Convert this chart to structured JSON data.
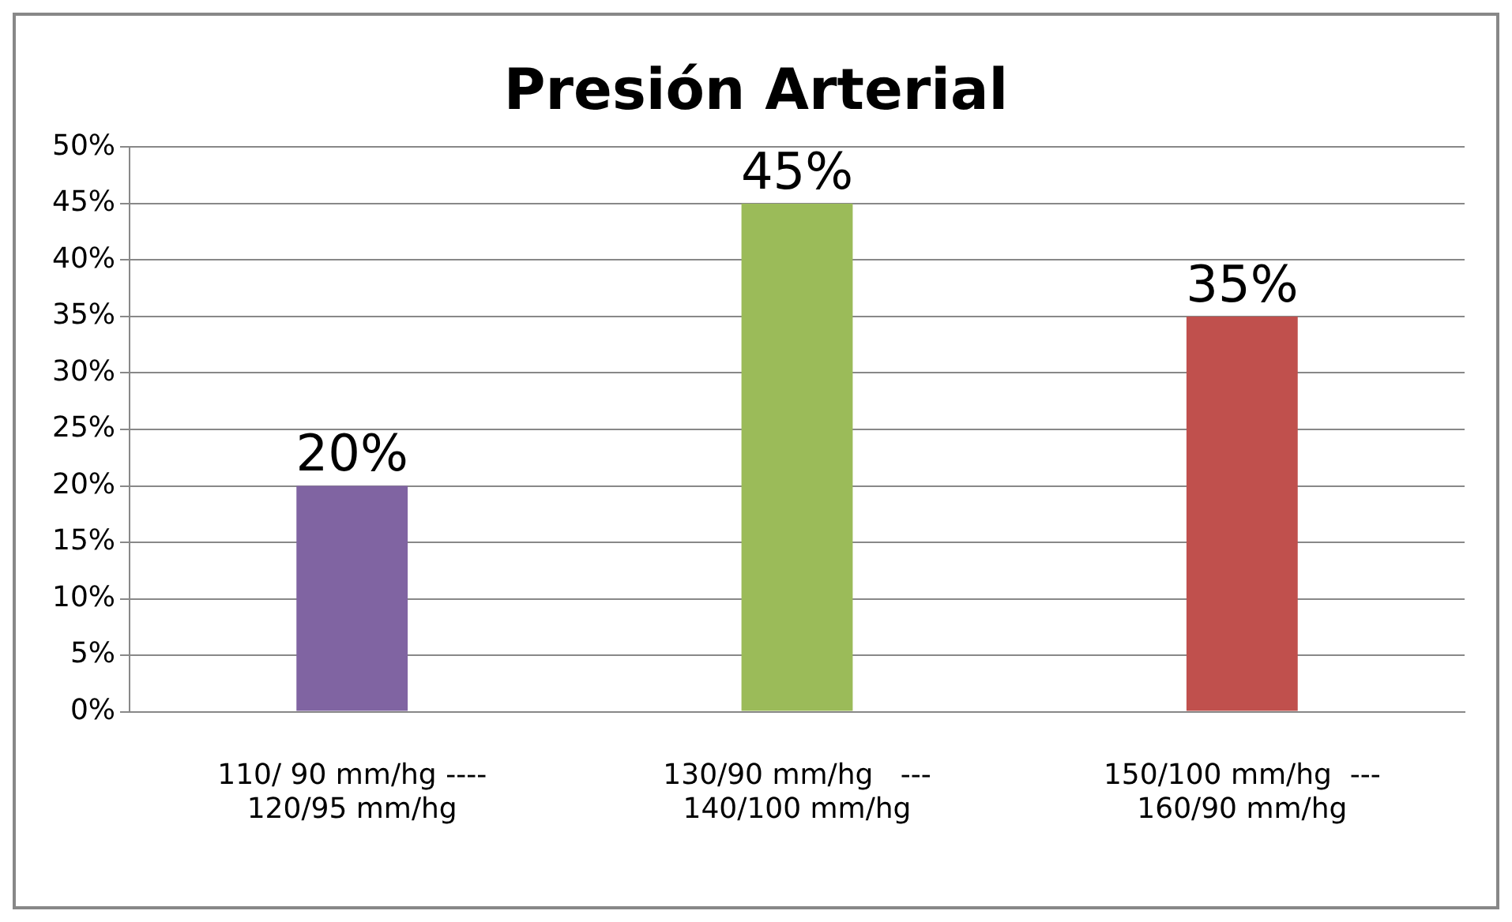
{
  "chart_data": {
    "type": "bar",
    "title": "Presión Arterial",
    "categories": [
      "110/ 90 mm/hg ----\n120/95 mm/hg",
      "130/90 mm/hg   ---\n140/100 mm/hg",
      "150/100 mm/hg  ---\n160/90 mm/hg"
    ],
    "values": [
      20,
      45,
      35
    ],
    "colors": [
      "#8064a2",
      "#9bbb59",
      "#c0504d"
    ],
    "value_labels": [
      "20%",
      "45%",
      "35%"
    ],
    "ylim": [
      0,
      50
    ],
    "yticks": [
      {
        "value": 0,
        "label": "0%"
      },
      {
        "value": 5,
        "label": "5%"
      },
      {
        "value": 10,
        "label": "10%"
      },
      {
        "value": 15,
        "label": "15%"
      },
      {
        "value": 20,
        "label": "20%"
      },
      {
        "value": 25,
        "label": "25%"
      },
      {
        "value": 30,
        "label": "30%"
      },
      {
        "value": 35,
        "label": "35%"
      },
      {
        "value": 40,
        "label": "40%"
      },
      {
        "value": 45,
        "label": "45%"
      },
      {
        "value": 50,
        "label": "50%"
      }
    ],
    "grid": "y",
    "legend": false
  }
}
